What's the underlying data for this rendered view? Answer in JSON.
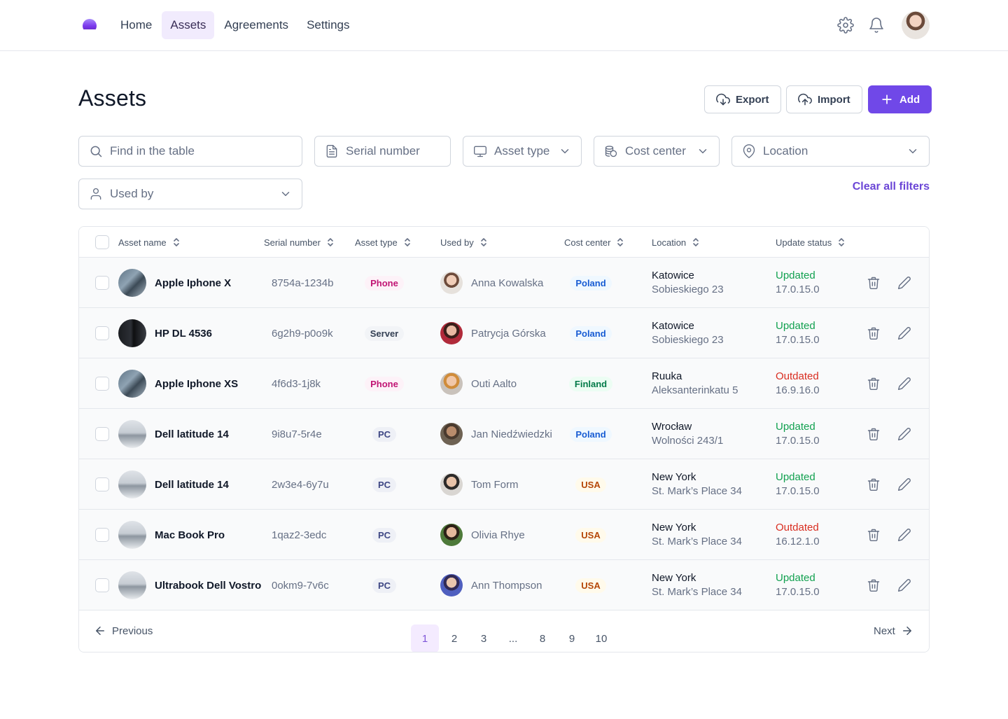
{
  "nav": {
    "items": [
      {
        "label": "Home",
        "active": false
      },
      {
        "label": "Assets",
        "active": true
      },
      {
        "label": "Agreements",
        "active": false
      },
      {
        "label": "Settings",
        "active": false
      }
    ],
    "icons": [
      "settings-icon",
      "bell-icon"
    ],
    "brand_color": "#7048e8"
  },
  "page": {
    "title": "Assets",
    "export_label": "Export",
    "import_label": "Import",
    "add_label": "Add"
  },
  "filters": {
    "search_placeholder": "Find in the table",
    "serial_placeholder": "Serial number",
    "asset_type": "Asset type",
    "cost_center": "Cost center",
    "location": "Location",
    "used_by": "Used by",
    "clear_all": "Clear all filters"
  },
  "table": {
    "headers": {
      "asset_name": "Asset name",
      "serial_number": "Serial number",
      "asset_type": "Asset type",
      "used_by": "Used by",
      "cost_center": "Cost center",
      "location": "Location",
      "update_status": "Update status"
    },
    "rows": [
      {
        "name": "Apple Iphone X",
        "thumb": "phone",
        "serial": "8754a-1234b",
        "type": "Phone",
        "type_style": "phone",
        "user": "Anna Kowalska",
        "cost_center": "Poland",
        "cc_style": "blue",
        "city": "Katowice",
        "street": "Sobieskiego 23",
        "status": "Updated",
        "status_ok": true,
        "version": "17.0.15.0"
      },
      {
        "name": "HP DL 4536",
        "thumb": "server",
        "serial": "6g2h9-p0o9k",
        "type": "Server",
        "type_style": "neutral",
        "user": "Patrycja Górska",
        "cost_center": "Poland",
        "cc_style": "blue",
        "city": "Katowice",
        "street": "Sobieskiego 23",
        "status": "Updated",
        "status_ok": true,
        "version": "17.0.15.0"
      },
      {
        "name": "Apple Iphone XS",
        "thumb": "phone",
        "serial": "4f6d3-1j8k",
        "type": "Phone",
        "type_style": "phone",
        "user": "Outi Aalto",
        "cost_center": "Finland",
        "cc_style": "green",
        "city": "Ruuka",
        "street": "Aleksanterinkatu 5",
        "status": "Outdated",
        "status_ok": false,
        "version": "16.9.16.0"
      },
      {
        "name": "Dell latitude 14",
        "thumb": "pc",
        "serial": "9i8u7-5r4e",
        "type": "PC",
        "type_style": "pc",
        "user": "Jan Niedźwiedzki",
        "cost_center": "Poland",
        "cc_style": "blue",
        "city": "Wrocław",
        "street": "Wolności 243/1",
        "status": "Updated",
        "status_ok": true,
        "version": "17.0.15.0"
      },
      {
        "name": "Dell latitude 14",
        "thumb": "pc",
        "serial": "2w3e4-6y7u",
        "type": "PC",
        "type_style": "pc",
        "user": "Tom Form",
        "cost_center": "USA",
        "cc_style": "orange",
        "city": "New York",
        "street": "St. Mark’s Place 34",
        "status": "Updated",
        "status_ok": true,
        "version": "17.0.15.0"
      },
      {
        "name": "Mac Book Pro",
        "thumb": "pc",
        "serial": "1qaz2-3edc",
        "type": "PC",
        "type_style": "pc",
        "user": "Olivia Rhye",
        "cost_center": "USA",
        "cc_style": "orange",
        "city": "New York",
        "street": "St. Mark’s Place 34",
        "status": "Outdated",
        "status_ok": false,
        "version": "16.12.1.0"
      },
      {
        "name": "Ultrabook Dell Vostro",
        "thumb": "pc",
        "serial": "0okm9-7v6c",
        "type": "PC",
        "type_style": "pc",
        "user": "Ann Thompson",
        "cost_center": "USA",
        "cc_style": "orange",
        "city": "New York",
        "street": "St. Mark’s Place 34",
        "status": "Updated",
        "status_ok": true,
        "version": "17.0.15.0"
      }
    ]
  },
  "pagination": {
    "previous": "Previous",
    "next": "Next",
    "pages": [
      "1",
      "2",
      "3",
      "...",
      "8",
      "9",
      "10"
    ],
    "current": "1"
  }
}
